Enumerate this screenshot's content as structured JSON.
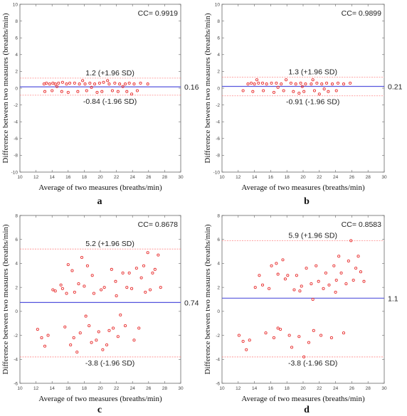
{
  "chart_data": [
    {
      "type": "scatter",
      "panel": "a",
      "cc_label": "CC= 0.9919",
      "xlabel": "Average of two measures (breaths/min)",
      "ylabel": "Difference between two measures (breaths/min)",
      "xlim": [
        10,
        30
      ],
      "ylim": [
        -10,
        10
      ],
      "xticks": [
        "10",
        "12",
        "14",
        "16",
        "18",
        "20",
        "22",
        "24",
        "26",
        "28",
        "30"
      ],
      "yticks": [
        "-10",
        "-8",
        "-6",
        "-4",
        "-2",
        "0",
        "2",
        "4",
        "6",
        "8",
        "10"
      ],
      "mean_line": 0.16,
      "mean_label": "0.16",
      "upper_loa": 1.2,
      "upper_label": "1.2 (+1.96 SD)",
      "lower_loa": -0.84,
      "lower_label": "-0.84 (-1.96 SD)",
      "points": [
        [
          13,
          0.5
        ],
        [
          13.3,
          0.6
        ],
        [
          13.7,
          0.5
        ],
        [
          14.1,
          0.6
        ],
        [
          14.4,
          0.5
        ],
        [
          14.8,
          0.6
        ],
        [
          15.3,
          0.7
        ],
        [
          15.8,
          0.5
        ],
        [
          16.2,
          0.6
        ],
        [
          16.8,
          0.6
        ],
        [
          17.4,
          0.5
        ],
        [
          18.1,
          0.5
        ],
        [
          18.7,
          0.6
        ],
        [
          19.3,
          0.5
        ],
        [
          19.9,
          0.6
        ],
        [
          20.4,
          0.7
        ],
        [
          21.1,
          0.5
        ],
        [
          21.8,
          0.6
        ],
        [
          22.4,
          0.5
        ],
        [
          23.1,
          0.5
        ],
        [
          23.6,
          0.6
        ],
        [
          24.2,
          0.5
        ],
        [
          25.0,
          0.6
        ],
        [
          25.9,
          0.5
        ],
        [
          13.1,
          -0.4
        ],
        [
          14.0,
          -0.3
        ],
        [
          15.2,
          -0.4
        ],
        [
          16.0,
          -0.5
        ],
        [
          17.2,
          -0.4
        ],
        [
          18.3,
          -0.3
        ],
        [
          19.6,
          -0.5
        ],
        [
          20.2,
          -0.4
        ],
        [
          21.5,
          -0.3
        ],
        [
          22.2,
          -0.4
        ],
        [
          23.3,
          -0.4
        ],
        [
          24.6,
          -0.3
        ],
        [
          17.8,
          0.9
        ],
        [
          20.9,
          0.9
        ],
        [
          14.6,
          0.2
        ],
        [
          18.9,
          0.1
        ],
        [
          22.8,
          0.2
        ],
        [
          23.9,
          -0.7
        ]
      ]
    },
    {
      "type": "scatter",
      "panel": "b",
      "cc_label": "CC= 0.9899",
      "xlabel": "Average of two measures (breaths/min)",
      "ylabel": "Difference between two measures (breaths/min)",
      "xlim": [
        10,
        30
      ],
      "ylim": [
        -10,
        10
      ],
      "xticks": [
        "10",
        "12",
        "14",
        "16",
        "18",
        "20",
        "22",
        "24",
        "26",
        "28",
        "30"
      ],
      "yticks": [
        "-10",
        "-8",
        "-6",
        "-4",
        "-2",
        "0",
        "2",
        "4",
        "6",
        "8",
        "10"
      ],
      "mean_line": 0.21,
      "mean_label": "0.21",
      "upper_loa": 1.3,
      "upper_label": "1.3 (+1.96 SD)",
      "lower_loa": -0.91,
      "lower_label": "-0.91 (-1.96 SD)",
      "points": [
        [
          13.2,
          0.5
        ],
        [
          13.6,
          0.6
        ],
        [
          14.0,
          0.5
        ],
        [
          14.5,
          0.6
        ],
        [
          15.0,
          0.6
        ],
        [
          15.5,
          0.5
        ],
        [
          16.1,
          0.6
        ],
        [
          16.7,
          0.6
        ],
        [
          17.3,
          0.5
        ],
        [
          17.9,
          1.0
        ],
        [
          18.5,
          0.6
        ],
        [
          19.1,
          0.5
        ],
        [
          19.7,
          0.6
        ],
        [
          20.3,
          0.5
        ],
        [
          21.0,
          0.5
        ],
        [
          21.7,
          0.6
        ],
        [
          22.3,
          0.5
        ],
        [
          22.9,
          0.6
        ],
        [
          23.6,
          0.5
        ],
        [
          24.3,
          0.6
        ],
        [
          25.0,
          0.5
        ],
        [
          25.8,
          0.6
        ],
        [
          12.6,
          -0.3
        ],
        [
          13.8,
          -0.4
        ],
        [
          15.1,
          -0.3
        ],
        [
          16.4,
          -0.5
        ],
        [
          17.6,
          -0.3
        ],
        [
          18.8,
          -0.4
        ],
        [
          19.5,
          -0.6
        ],
        [
          20.1,
          -0.4
        ],
        [
          21.4,
          -0.3
        ],
        [
          22.0,
          -0.7
        ],
        [
          23.1,
          -0.4
        ],
        [
          24.1,
          -0.3
        ],
        [
          14.3,
          1.0
        ],
        [
          21.2,
          1.0
        ],
        [
          16.9,
          0.1
        ],
        [
          19.9,
          0.2
        ],
        [
          22.6,
          -0.1
        ]
      ]
    },
    {
      "type": "scatter",
      "panel": "c",
      "cc_label": "CC= 0.8678",
      "xlabel": "Average of two measures (breaths/min)",
      "ylabel": "Difference between two measures (breaths/min)",
      "xlim": [
        10,
        30
      ],
      "ylim": [
        -6,
        8
      ],
      "xticks": [
        "10",
        "12",
        "14",
        "16",
        "18",
        "20",
        "22",
        "24",
        "26",
        "28",
        "30"
      ],
      "yticks": [
        "-6",
        "-4",
        "-2",
        "0",
        "2",
        "4",
        "6",
        "8"
      ],
      "mean_line": 0.74,
      "mean_label": "0.74",
      "upper_loa": 5.2,
      "upper_label": "5.2 (+1.96 SD)",
      "lower_loa": -3.8,
      "lower_label": "-3.8 (-1.96 SD)",
      "points": [
        [
          12.2,
          -1.5
        ],
        [
          12.7,
          -2.2
        ],
        [
          13.1,
          -2.9
        ],
        [
          13.5,
          -2.0
        ],
        [
          14.1,
          1.8
        ],
        [
          14.4,
          1.7
        ],
        [
          15.1,
          2.2
        ],
        [
          15.3,
          1.9
        ],
        [
          15.6,
          -1.3
        ],
        [
          15.8,
          1.5
        ],
        [
          16.0,
          3.9
        ],
        [
          16.3,
          -2.8
        ],
        [
          16.5,
          3.4
        ],
        [
          16.8,
          1.6
        ],
        [
          17.1,
          -3.4
        ],
        [
          17.3,
          2.3
        ],
        [
          17.5,
          -1.8
        ],
        [
          17.7,
          4.5
        ],
        [
          18.0,
          2.1
        ],
        [
          18.2,
          -0.4
        ],
        [
          18.4,
          3.8
        ],
        [
          18.6,
          -1.2
        ],
        [
          18.9,
          -2.6
        ],
        [
          19.2,
          1.5
        ],
        [
          19.5,
          -2.4
        ],
        [
          19.8,
          -1.7
        ],
        [
          20.1,
          1.8
        ],
        [
          20.3,
          -3.2
        ],
        [
          20.5,
          2.0
        ],
        [
          20.8,
          -2.8
        ],
        [
          21.1,
          -1.6
        ],
        [
          21.4,
          3.5
        ],
        [
          21.6,
          -1.4
        ],
        [
          21.9,
          2.5
        ],
        [
          22.2,
          -2.1
        ],
        [
          22.5,
          -0.3
        ],
        [
          22.8,
          3.2
        ],
        [
          23.1,
          -1.2
        ],
        [
          23.3,
          2.0
        ],
        [
          23.6,
          3.2
        ],
        [
          23.9,
          1.9
        ],
        [
          24.2,
          -2.4
        ],
        [
          24.5,
          3.6
        ],
        [
          24.8,
          -1.4
        ],
        [
          25.1,
          2.8
        ],
        [
          25.4,
          3.8
        ],
        [
          25.6,
          1.6
        ],
        [
          25.9,
          4.9
        ],
        [
          26.2,
          1.8
        ],
        [
          26.5,
          3.2
        ],
        [
          26.8,
          3.5
        ],
        [
          27.2,
          4.7
        ],
        [
          27.5,
          2.0
        ],
        [
          19.0,
          3.0
        ],
        [
          16.7,
          -2.2
        ],
        [
          22.0,
          1.3
        ]
      ]
    },
    {
      "type": "scatter",
      "panel": "d",
      "cc_label": "CC= 0.8583",
      "xlabel": "Average of two measures (breaths/min)",
      "ylabel": "Difference between two measures (breaths/min)",
      "xlim": [
        10,
        30
      ],
      "ylim": [
        -6,
        8
      ],
      "xticks": [
        "10",
        "12",
        "14",
        "16",
        "18",
        "20",
        "22",
        "24",
        "26",
        "28",
        "30"
      ],
      "yticks": [
        "-6",
        "-4",
        "-2",
        "0",
        "2",
        "4",
        "6",
        "8"
      ],
      "mean_line": 1.1,
      "mean_label": "1.1",
      "upper_loa": 5.9,
      "upper_label": "5.9 (+1.96 SD)",
      "lower_loa": -3.8,
      "lower_label": "-3.8 (-1.96 SD)",
      "points": [
        [
          12.1,
          -2.0
        ],
        [
          12.6,
          -2.5
        ],
        [
          13.0,
          -3.2
        ],
        [
          13.4,
          -2.4
        ],
        [
          14.1,
          2.0
        ],
        [
          14.6,
          3.0
        ],
        [
          15.0,
          2.2
        ],
        [
          15.4,
          -1.8
        ],
        [
          15.8,
          1.9
        ],
        [
          16.1,
          3.8
        ],
        [
          16.4,
          -2.2
        ],
        [
          16.7,
          4.0
        ],
        [
          16.9,
          3.1
        ],
        [
          17.2,
          -1.5
        ],
        [
          17.5,
          4.3
        ],
        [
          17.8,
          2.7
        ],
        [
          18.1,
          3.0
        ],
        [
          18.3,
          -2.0
        ],
        [
          18.6,
          -3.0
        ],
        [
          18.9,
          1.8
        ],
        [
          19.2,
          3.0
        ],
        [
          19.5,
          -2.1
        ],
        [
          19.8,
          2.1
        ],
        [
          20.1,
          -3.8
        ],
        [
          20.4,
          3.6
        ],
        [
          20.7,
          -2.6
        ],
        [
          21.0,
          2.3
        ],
        [
          21.3,
          -1.6
        ],
        [
          21.6,
          3.8
        ],
        [
          21.9,
          2.5
        ],
        [
          22.2,
          -2.0
        ],
        [
          22.5,
          1.9
        ],
        [
          22.8,
          3.2
        ],
        [
          23.2,
          2.2
        ],
        [
          23.5,
          -2.2
        ],
        [
          23.8,
          3.8
        ],
        [
          24.1,
          2.6
        ],
        [
          24.4,
          4.6
        ],
        [
          24.7,
          3.2
        ],
        [
          25.0,
          -1.8
        ],
        [
          25.3,
          2.3
        ],
        [
          25.6,
          4.2
        ],
        [
          25.9,
          5.9
        ],
        [
          26.2,
          2.6
        ],
        [
          26.5,
          3.6
        ],
        [
          26.8,
          4.6
        ],
        [
          27.1,
          3.3
        ],
        [
          27.5,
          2.5
        ],
        [
          16.9,
          -1.4
        ],
        [
          19.6,
          1.7
        ],
        [
          21.2,
          1.0
        ],
        [
          24.0,
          1.6
        ]
      ]
    }
  ]
}
